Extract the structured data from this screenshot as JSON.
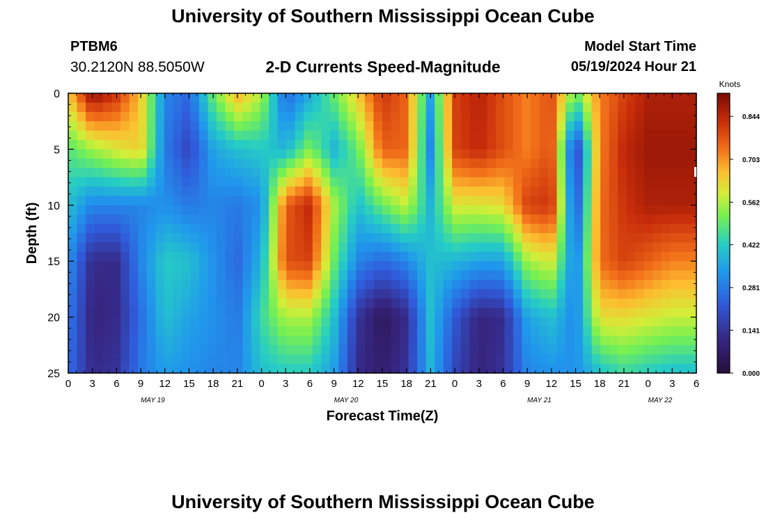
{
  "header": {
    "title": "University of Southern Mississippi Ocean Cube",
    "station_id": "PTBM6",
    "coords": "30.2120N  88.5050W",
    "subtitle": "2-D Currents Speed-Magnitude",
    "model_start_label": "Model Start Time",
    "model_start_value": "05/19/2024 Hour 21"
  },
  "footer": {
    "title": "University of Southern Mississippi Ocean Cube"
  },
  "chart_data": {
    "type": "heatmap",
    "title": "2-D Currents Speed-Magnitude",
    "xlabel": "Forecast Time(Z)",
    "ylabel": "Depth (ft)",
    "x_range_hours": [
      0,
      78
    ],
    "y_range_ft": [
      0,
      25
    ],
    "x_tick_labels": [
      "0",
      "3",
      "6",
      "9",
      "12",
      "15",
      "18",
      "21",
      "0",
      "3",
      "6",
      "9",
      "12",
      "15",
      "18",
      "21",
      "0",
      "3",
      "6",
      "9",
      "12",
      "15",
      "18",
      "21",
      "0",
      "3",
      "6"
    ],
    "y_tick_labels": [
      "0",
      "5",
      "10",
      "15",
      "20",
      "25"
    ],
    "date_labels": [
      {
        "text": "MAY 19",
        "hour": 10.5
      },
      {
        "text": "MAY 20",
        "hour": 34.5
      },
      {
        "text": "MAY 21",
        "hour": 58.5
      },
      {
        "text": "MAY 22",
        "hour": 73.5
      }
    ],
    "colorbar": {
      "unit": "Knots",
      "min": 0.0,
      "max": 0.92,
      "tick_labels": [
        "0.844",
        "0.703",
        "0.562",
        "0.422",
        "0.281",
        "0.141",
        "0.000"
      ],
      "tick_values": [
        0.844,
        0.703,
        0.562,
        0.422,
        0.281,
        0.141,
        0.0
      ]
    },
    "grid": false,
    "depths_ft": [
      0,
      5,
      10,
      15,
      20,
      25
    ],
    "columns": [
      {
        "hour": 0,
        "speed": [
          0.64,
          0.48,
          0.4,
          0.32,
          0.28,
          0.26
        ]
      },
      {
        "hour": 3,
        "speed": [
          0.9,
          0.55,
          0.3,
          0.12,
          0.1,
          0.12
        ]
      },
      {
        "hour": 6,
        "speed": [
          0.82,
          0.6,
          0.3,
          0.12,
          0.12,
          0.14
        ]
      },
      {
        "hour": 9,
        "speed": [
          0.65,
          0.64,
          0.3,
          0.3,
          0.26,
          0.28
        ]
      },
      {
        "hour": 12,
        "speed": [
          0.3,
          0.28,
          0.32,
          0.42,
          0.4,
          0.34
        ]
      },
      {
        "hour": 15,
        "speed": [
          0.25,
          0.18,
          0.28,
          0.4,
          0.35,
          0.32
        ]
      },
      {
        "hour": 18,
        "speed": [
          0.5,
          0.35,
          0.3,
          0.32,
          0.32,
          0.3
        ]
      },
      {
        "hour": 21,
        "speed": [
          0.68,
          0.4,
          0.28,
          0.25,
          0.28,
          0.3
        ]
      },
      {
        "hour": 24,
        "speed": [
          0.56,
          0.42,
          0.32,
          0.38,
          0.45,
          0.4
        ]
      },
      {
        "hour": 27,
        "speed": [
          0.25,
          0.38,
          0.76,
          0.78,
          0.56,
          0.42
        ]
      },
      {
        "hour": 30,
        "speed": [
          0.36,
          0.52,
          0.84,
          0.8,
          0.56,
          0.42
        ]
      },
      {
        "hour": 33,
        "speed": [
          0.5,
          0.38,
          0.56,
          0.5,
          0.4,
          0.34
        ]
      },
      {
        "hour": 36,
        "speed": [
          0.65,
          0.5,
          0.4,
          0.3,
          0.14,
          0.12
        ]
      },
      {
        "hour": 39,
        "speed": [
          0.82,
          0.76,
          0.5,
          0.25,
          0.05,
          0.08
        ]
      },
      {
        "hour": 42,
        "speed": [
          0.75,
          0.75,
          0.58,
          0.3,
          0.12,
          0.14
        ]
      },
      {
        "hour": 45,
        "speed": [
          0.35,
          0.3,
          0.38,
          0.4,
          0.4,
          0.38
        ]
      },
      {
        "hour": 48,
        "speed": [
          0.8,
          0.8,
          0.6,
          0.38,
          0.22,
          0.18
        ]
      },
      {
        "hour": 51,
        "speed": [
          0.85,
          0.84,
          0.6,
          0.35,
          0.1,
          0.1
        ]
      },
      {
        "hour": 54,
        "speed": [
          0.78,
          0.78,
          0.62,
          0.35,
          0.12,
          0.14
        ]
      },
      {
        "hour": 57,
        "speed": [
          0.72,
          0.72,
          0.8,
          0.55,
          0.35,
          0.3
        ]
      },
      {
        "hour": 60,
        "speed": [
          0.78,
          0.78,
          0.82,
          0.6,
          0.4,
          0.32
        ]
      },
      {
        "hour": 63,
        "speed": [
          0.5,
          0.15,
          0.2,
          0.28,
          0.3,
          0.32
        ]
      },
      {
        "hour": 66,
        "speed": [
          0.72,
          0.72,
          0.74,
          0.74,
          0.62,
          0.4
        ]
      },
      {
        "hour": 69,
        "speed": [
          0.8,
          0.84,
          0.82,
          0.8,
          0.62,
          0.45
        ]
      },
      {
        "hour": 72,
        "speed": [
          0.86,
          0.88,
          0.86,
          0.76,
          0.6,
          0.42
        ]
      },
      {
        "hour": 75,
        "speed": [
          0.86,
          0.88,
          0.86,
          0.72,
          0.58,
          0.4
        ]
      },
      {
        "hour": 78,
        "speed": [
          0.86,
          0.88,
          0.86,
          0.72,
          0.58,
          0.4
        ]
      }
    ]
  }
}
